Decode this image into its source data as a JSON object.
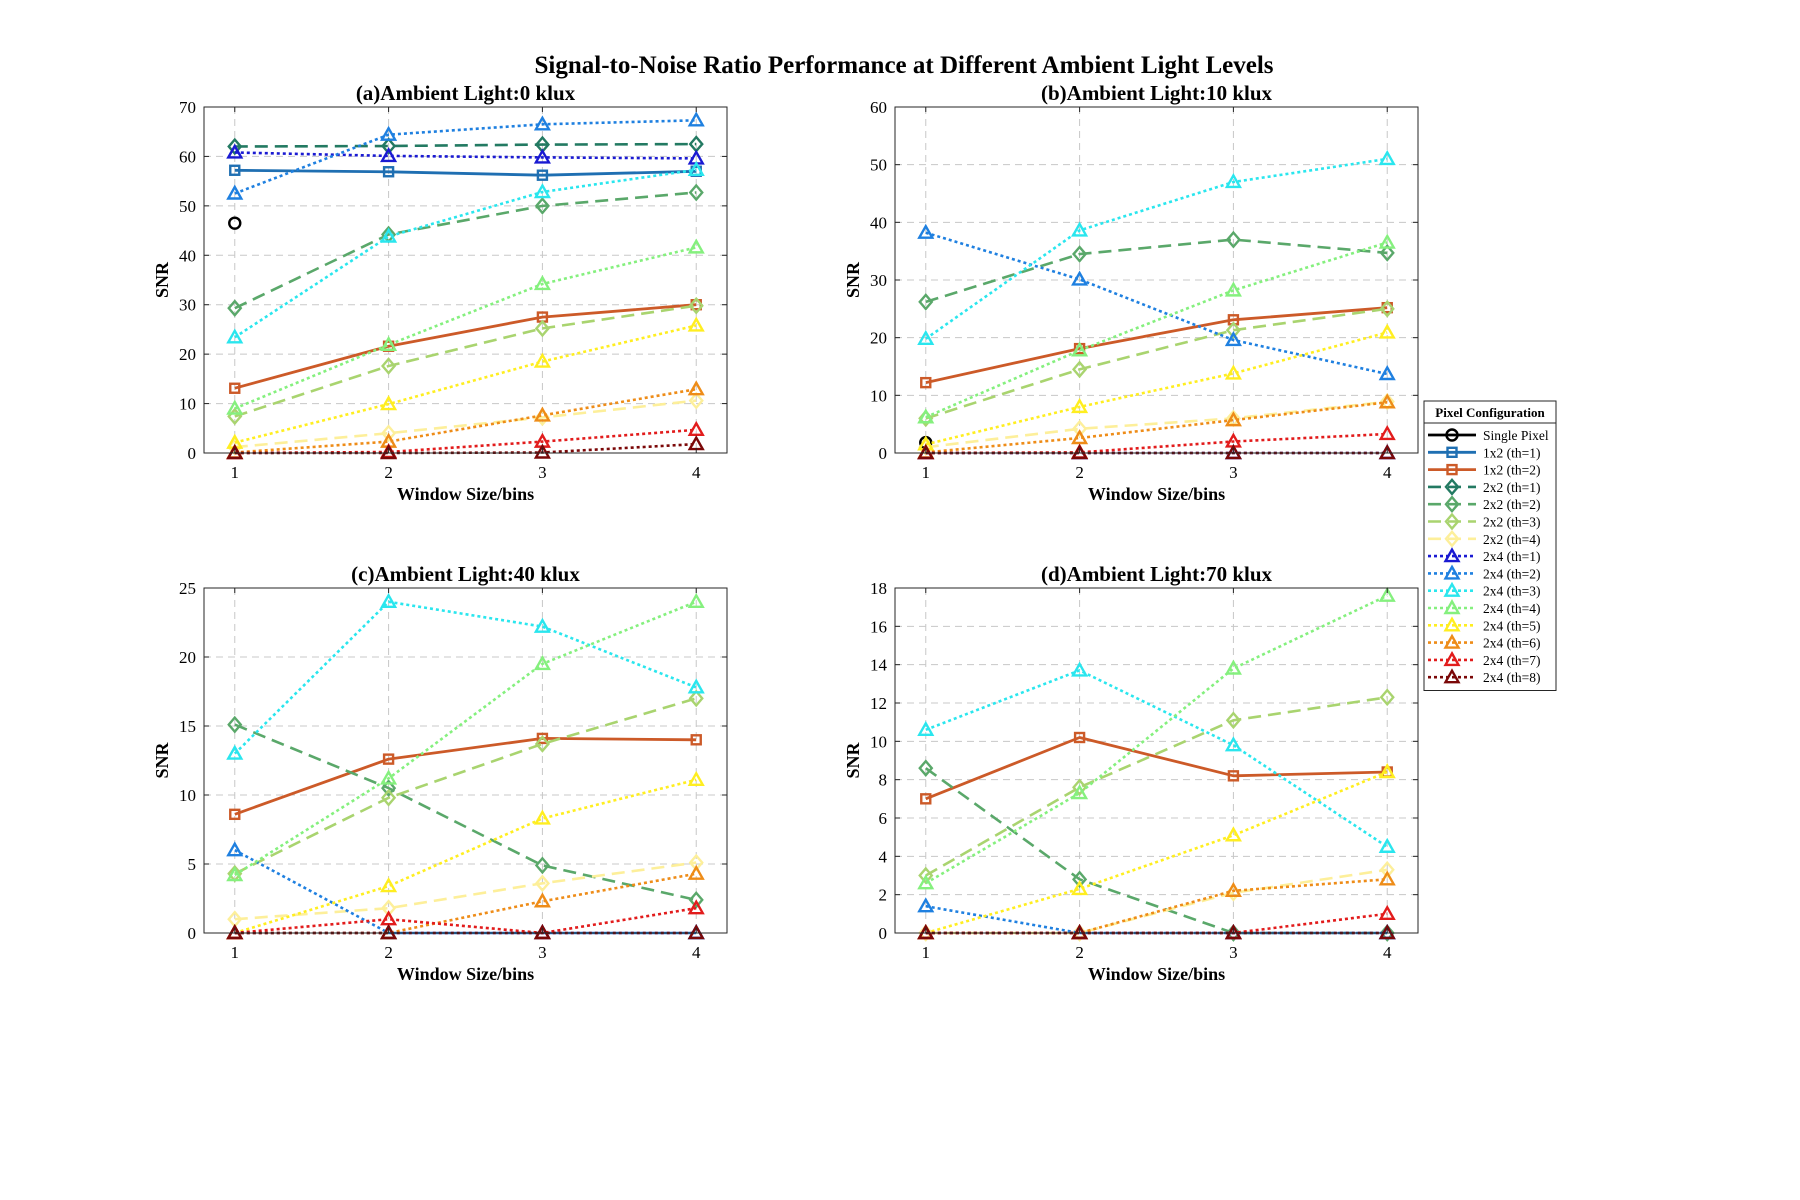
{
  "suptitle": "Signal-to-Noise Ratio Performance at Different Ambient Light Levels",
  "legend": {
    "title": "Pixel Configuration",
    "placement": "right",
    "entries": [
      {
        "name": "Single Pixel",
        "color": "#000000",
        "dash": "solid",
        "marker": "circle"
      },
      {
        "name": "1x2 (th=1)",
        "color": "#1f6fb2",
        "dash": "solid",
        "marker": "square"
      },
      {
        "name": "1x2 (th=2)",
        "color": "#cc5a28",
        "dash": "solid",
        "marker": "square"
      },
      {
        "name": "2x2 (th=1)",
        "color": "#237a62",
        "dash": "dashed",
        "marker": "diamond"
      },
      {
        "name": "2x2 (th=2)",
        "color": "#5aa86a",
        "dash": "dashed",
        "marker": "diamond"
      },
      {
        "name": "2x2 (th=3)",
        "color": "#a9d46f",
        "dash": "dashed",
        "marker": "diamond"
      },
      {
        "name": "2x2 (th=4)",
        "color": "#fdef9a",
        "dash": "dashed",
        "marker": "diamond"
      },
      {
        "name": "2x4 (th=1)",
        "color": "#1a1ad2",
        "dash": "dotted",
        "marker": "triangle"
      },
      {
        "name": "2x4 (th=2)",
        "color": "#1f80e0",
        "dash": "dotted",
        "marker": "triangle"
      },
      {
        "name": "2x4 (th=3)",
        "color": "#2ae6ee",
        "dash": "dotted",
        "marker": "triangle"
      },
      {
        "name": "2x4 (th=4)",
        "color": "#85f07e",
        "dash": "dotted",
        "marker": "triangle"
      },
      {
        "name": "2x4 (th=5)",
        "color": "#ffee20",
        "dash": "dotted",
        "marker": "triangle"
      },
      {
        "name": "2x4 (th=6)",
        "color": "#ee8c18",
        "dash": "dotted",
        "marker": "triangle"
      },
      {
        "name": "2x4 (th=7)",
        "color": "#e21c1c",
        "dash": "dotted",
        "marker": "triangle"
      },
      {
        "name": "2x4 (th=8)",
        "color": "#7b0808",
        "dash": "dotted",
        "marker": "triangle"
      }
    ]
  },
  "chart_data": [
    {
      "type": "line",
      "title": "(a)Ambient Light:0 klux",
      "xlabel": "Window Size/bins",
      "ylabel": "SNR",
      "x": [
        1,
        2,
        3,
        4
      ],
      "xlim": [
        0.8,
        4.2
      ],
      "ylim": [
        0,
        70
      ],
      "yticks": [
        0,
        10,
        20,
        30,
        40,
        50,
        60,
        70
      ],
      "grid": true,
      "series": [
        {
          "name": "Single Pixel",
          "values": [
            46.5,
            null,
            null,
            null
          ]
        },
        {
          "name": "1x2 (th=1)",
          "values": [
            57.2,
            56.9,
            56.2,
            57.0
          ]
        },
        {
          "name": "1x2 (th=2)",
          "values": [
            13.1,
            21.6,
            27.5,
            30.0
          ]
        },
        {
          "name": "2x2 (th=1)",
          "values": [
            62.0,
            62.1,
            62.4,
            62.5
          ]
        },
        {
          "name": "2x2 (th=2)",
          "values": [
            29.3,
            44.2,
            50.0,
            52.7
          ]
        },
        {
          "name": "2x2 (th=3)",
          "values": [
            7.4,
            17.6,
            25.2,
            29.8
          ]
        },
        {
          "name": "2x2 (th=4)",
          "values": [
            1.2,
            4.0,
            7.2,
            10.6
          ]
        },
        {
          "name": "2x4 (th=1)",
          "values": [
            60.8,
            60.1,
            59.8,
            59.6
          ]
        },
        {
          "name": "2x4 (th=2)",
          "values": [
            52.5,
            64.4,
            66.5,
            67.3
          ]
        },
        {
          "name": "2x4 (th=3)",
          "values": [
            23.4,
            43.8,
            52.8,
            57.3
          ]
        },
        {
          "name": "2x4 (th=4)",
          "values": [
            9.0,
            21.9,
            34.2,
            41.6
          ]
        },
        {
          "name": "2x4 (th=5)",
          "values": [
            2.1,
            9.9,
            18.5,
            25.8
          ]
        },
        {
          "name": "2x4 (th=6)",
          "values": [
            0.1,
            2.3,
            7.6,
            12.9
          ]
        },
        {
          "name": "2x4 (th=7)",
          "values": [
            0.0,
            0.2,
            2.3,
            4.7
          ]
        },
        {
          "name": "2x4 (th=8)",
          "values": [
            0.0,
            0.0,
            0.1,
            1.8
          ]
        }
      ]
    },
    {
      "type": "line",
      "title": "(b)Ambient Light:10 klux",
      "xlabel": "Window Size/bins",
      "ylabel": "SNR",
      "x": [
        1,
        2,
        3,
        4
      ],
      "xlim": [
        0.8,
        4.2
      ],
      "ylim": [
        0,
        60
      ],
      "yticks": [
        0,
        10,
        20,
        30,
        40,
        50,
        60
      ],
      "grid": true,
      "series": [
        {
          "name": "Single Pixel",
          "values": [
            1.8,
            null,
            null,
            null
          ]
        },
        {
          "name": "1x2 (th=1)",
          "values": [
            null,
            null,
            null,
            null
          ]
        },
        {
          "name": "1x2 (th=2)",
          "values": [
            12.2,
            18.1,
            23.1,
            25.2
          ]
        },
        {
          "name": "2x2 (th=1)",
          "values": [
            null,
            null,
            null,
            null
          ]
        },
        {
          "name": "2x2 (th=2)",
          "values": [
            26.2,
            34.5,
            37.0,
            34.7
          ]
        },
        {
          "name": "2x2 (th=3)",
          "values": [
            6.0,
            14.5,
            21.3,
            25.0
          ]
        },
        {
          "name": "2x2 (th=4)",
          "values": [
            1.0,
            4.2,
            6.0,
            8.9
          ]
        },
        {
          "name": "2x4 (th=1)",
          "values": [
            0.0,
            0.0,
            0.0,
            0.0
          ]
        },
        {
          "name": "2x4 (th=2)",
          "values": [
            38.2,
            30.1,
            19.6,
            13.7
          ]
        },
        {
          "name": "2x4 (th=3)",
          "values": [
            19.8,
            38.6,
            47.0,
            51.0
          ]
        },
        {
          "name": "2x4 (th=4)",
          "values": [
            6.2,
            17.8,
            28.2,
            36.5
          ]
        },
        {
          "name": "2x4 (th=5)",
          "values": [
            1.5,
            8.0,
            13.8,
            20.9
          ]
        },
        {
          "name": "2x4 (th=6)",
          "values": [
            0.1,
            2.6,
            5.7,
            8.8
          ]
        },
        {
          "name": "2x4 (th=7)",
          "values": [
            0.0,
            0.1,
            2.0,
            3.3
          ]
        },
        {
          "name": "2x4 (th=8)",
          "values": [
            0.0,
            0.0,
            0.0,
            0.0
          ]
        }
      ]
    },
    {
      "type": "line",
      "title": "(c)Ambient Light:40 klux",
      "xlabel": "Window Size/bins",
      "ylabel": "SNR",
      "x": [
        1,
        2,
        3,
        4
      ],
      "xlim": [
        0.8,
        4.2
      ],
      "ylim": [
        0,
        25
      ],
      "yticks": [
        0,
        5,
        10,
        15,
        20,
        25
      ],
      "grid": true,
      "series": [
        {
          "name": "Single Pixel",
          "values": [
            null,
            null,
            null,
            null
          ]
        },
        {
          "name": "1x2 (th=1)",
          "values": [
            null,
            null,
            null,
            null
          ]
        },
        {
          "name": "1x2 (th=2)",
          "values": [
            8.6,
            12.6,
            14.1,
            14.0
          ]
        },
        {
          "name": "2x2 (th=1)",
          "values": [
            null,
            null,
            null,
            null
          ]
        },
        {
          "name": "2x2 (th=2)",
          "values": [
            15.1,
            10.5,
            4.9,
            2.4
          ]
        },
        {
          "name": "2x2 (th=3)",
          "values": [
            4.3,
            9.8,
            13.7,
            17.0
          ]
        },
        {
          "name": "2x2 (th=4)",
          "values": [
            1.0,
            1.8,
            3.6,
            5.1
          ]
        },
        {
          "name": "2x4 (th=1)",
          "values": [
            0.0,
            0.0,
            0.0,
            0.0
          ]
        },
        {
          "name": "2x4 (th=2)",
          "values": [
            6.0,
            0.0,
            0.0,
            0.0
          ]
        },
        {
          "name": "2x4 (th=3)",
          "values": [
            13.0,
            24.0,
            22.2,
            17.8
          ]
        },
        {
          "name": "2x4 (th=4)",
          "values": [
            4.2,
            11.2,
            19.5,
            24.0
          ]
        },
        {
          "name": "2x4 (th=5)",
          "values": [
            0.0,
            3.4,
            8.3,
            11.1
          ]
        },
        {
          "name": "2x4 (th=6)",
          "values": [
            0.0,
            0.0,
            2.3,
            4.3
          ]
        },
        {
          "name": "2x4 (th=7)",
          "values": [
            0.0,
            1.0,
            0.0,
            1.8
          ]
        },
        {
          "name": "2x4 (th=8)",
          "values": [
            0.0,
            0.0,
            0.0,
            0.0
          ]
        }
      ]
    },
    {
      "type": "line",
      "title": "(d)Ambient Light:70 klux",
      "xlabel": "Window Size/bins",
      "ylabel": "SNR",
      "x": [
        1,
        2,
        3,
        4
      ],
      "xlim": [
        0.8,
        4.2
      ],
      "ylim": [
        0,
        18
      ],
      "yticks": [
        0,
        2,
        4,
        6,
        8,
        10,
        12,
        14,
        16,
        18
      ],
      "grid": true,
      "series": [
        {
          "name": "Single Pixel",
          "values": [
            null,
            null,
            null,
            null
          ]
        },
        {
          "name": "1x2 (th=1)",
          "values": [
            null,
            null,
            null,
            null
          ]
        },
        {
          "name": "1x2 (th=2)",
          "values": [
            7.0,
            10.2,
            8.2,
            8.4
          ]
        },
        {
          "name": "2x2 (th=1)",
          "values": [
            null,
            null,
            null,
            null
          ]
        },
        {
          "name": "2x2 (th=2)",
          "values": [
            8.6,
            2.8,
            0.0,
            0.0
          ]
        },
        {
          "name": "2x2 (th=3)",
          "values": [
            3.0,
            7.6,
            11.1,
            12.3
          ]
        },
        {
          "name": "2x2 (th=4)",
          "values": [
            0.0,
            0.0,
            2.1,
            3.3
          ]
        },
        {
          "name": "2x4 (th=1)",
          "values": [
            0.0,
            0.0,
            0.0,
            0.0
          ]
        },
        {
          "name": "2x4 (th=2)",
          "values": [
            1.4,
            0.0,
            0.0,
            0.0
          ]
        },
        {
          "name": "2x4 (th=3)",
          "values": [
            10.6,
            13.7,
            9.8,
            4.5
          ]
        },
        {
          "name": "2x4 (th=4)",
          "values": [
            2.6,
            7.3,
            13.8,
            17.6
          ]
        },
        {
          "name": "2x4 (th=5)",
          "values": [
            0.0,
            2.3,
            5.1,
            8.4
          ]
        },
        {
          "name": "2x4 (th=6)",
          "values": [
            0.0,
            0.0,
            2.2,
            2.8
          ]
        },
        {
          "name": "2x4 (th=7)",
          "values": [
            0.0,
            0.0,
            0.0,
            1.0
          ]
        },
        {
          "name": "2x4 (th=8)",
          "values": [
            0.0,
            0.0,
            0.0,
            0.0
          ]
        }
      ]
    }
  ]
}
